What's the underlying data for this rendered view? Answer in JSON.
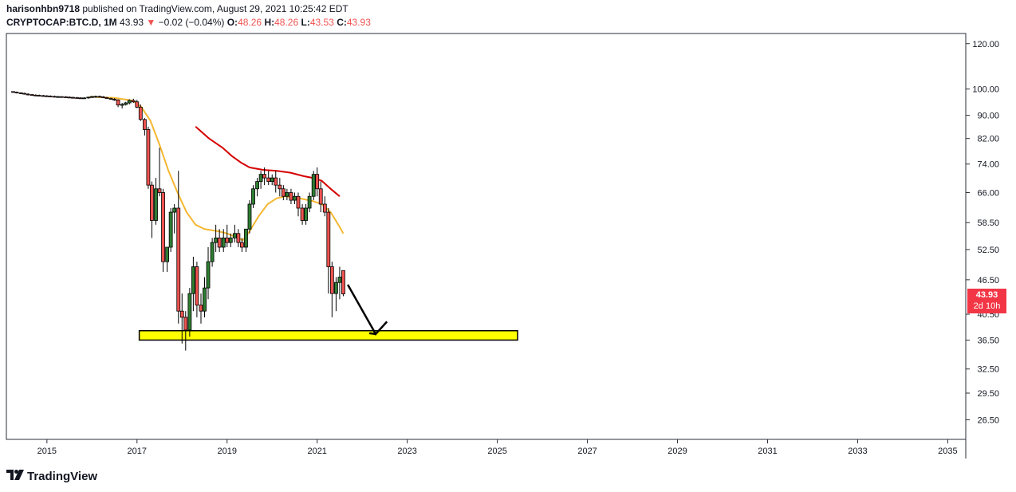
{
  "header": {
    "author": "harisonhbn9718",
    "published_text": "published on TradingView.com, August 29, 2021 10:25:42 EDT"
  },
  "legend": {
    "symbol": "CRYPTOCAP:BTC.D, 1M",
    "last": "43.93",
    "change_arrow": "▼",
    "change": "−0.02 (−0.04%)",
    "o_label": "O:",
    "o_value": "48.26",
    "h_label": "H:",
    "h_value": "48.26",
    "l_label": "L:",
    "l_value": "43.53",
    "c_label": "C:",
    "c_value": "43.93"
  },
  "price_tag": {
    "price": "43.93",
    "countdown": "2d 10h"
  },
  "brand": {
    "logo_icon": "tradingview-logo-icon",
    "name": "TradingView"
  },
  "colors": {
    "up": "#26a69a",
    "down": "#ef5350",
    "candle_body_up": "#2e7d32",
    "ma_fast": "#f5b731",
    "ma_slow": "#d50000",
    "zone": "#ffff00",
    "tag": "#f23645"
  },
  "chart_data": {
    "type": "candlestick",
    "scale": "log",
    "ylim": [
      24.5,
      125
    ],
    "xlim": [
      2014.1,
      2035.4
    ],
    "y_ticks": [
      "120.00",
      "100.00",
      "90.00",
      "82.00",
      "74.00",
      "66.00",
      "58.50",
      "52.50",
      "46.50",
      "40.50",
      "36.50",
      "32.50",
      "29.50",
      "26.50"
    ],
    "x_ticks": [
      "2015",
      "2017",
      "2019",
      "2021",
      "2023",
      "2025",
      "2027",
      "2029",
      "2031",
      "2033",
      "2035"
    ],
    "series": [
      {
        "kind": "ohlc",
        "candles": [
          [
            2014.25,
            99,
            99,
            98.5,
            98.8
          ],
          [
            2014.33,
            98.8,
            99,
            98.2,
            98.5
          ],
          [
            2014.42,
            98.5,
            98.7,
            98,
            98.3
          ],
          [
            2014.5,
            98.3,
            98.5,
            97.8,
            98
          ],
          [
            2014.58,
            98,
            98.3,
            97.5,
            97.8
          ],
          [
            2014.67,
            97.8,
            98,
            97.3,
            97.6
          ],
          [
            2014.75,
            97.6,
            97.9,
            97.2,
            97.5
          ],
          [
            2014.83,
            97.5,
            97.8,
            97.1,
            97.4
          ],
          [
            2014.92,
            97.4,
            97.7,
            97,
            97.3
          ],
          [
            2015.0,
            97.3,
            97.6,
            97,
            97.2
          ],
          [
            2015.08,
            97.2,
            97.5,
            96.9,
            97.1
          ],
          [
            2015.17,
            97.1,
            97.4,
            96.8,
            97
          ],
          [
            2015.25,
            97,
            97.3,
            96.8,
            97
          ],
          [
            2015.33,
            97,
            97.2,
            96.7,
            96.9
          ],
          [
            2015.42,
            96.9,
            97.2,
            96.6,
            96.8
          ],
          [
            2015.5,
            96.8,
            97.1,
            96.5,
            96.7
          ],
          [
            2015.58,
            96.7,
            97,
            96.4,
            96.6
          ],
          [
            2015.67,
            96.6,
            96.9,
            96.3,
            96.5
          ],
          [
            2015.75,
            96.5,
            96.8,
            96.2,
            96.4
          ],
          [
            2015.83,
            96.4,
            96.8,
            96.1,
            96.5
          ],
          [
            2015.92,
            96.5,
            97,
            96.2,
            96.8
          ],
          [
            2016.0,
            96.8,
            97.3,
            96.5,
            97
          ],
          [
            2016.08,
            97,
            97.4,
            96.6,
            97.1
          ],
          [
            2016.17,
            97.1,
            97.4,
            96.6,
            96.9
          ],
          [
            2016.25,
            96.9,
            97.2,
            96.4,
            96.6
          ],
          [
            2016.33,
            96.6,
            96.9,
            96.1,
            96.3
          ],
          [
            2016.42,
            96.3,
            96.6,
            95.8,
            96
          ],
          [
            2016.5,
            96,
            96.4,
            95.4,
            95.7
          ],
          [
            2016.58,
            95.7,
            96,
            93,
            93.8
          ],
          [
            2016.67,
            93.8,
            94.6,
            92.5,
            94
          ],
          [
            2016.75,
            94,
            95,
            93.6,
            94.6
          ],
          [
            2016.83,
            94.6,
            96,
            94,
            95.5
          ],
          [
            2016.92,
            95.5,
            96.2,
            94.6,
            95
          ],
          [
            2017.0,
            95,
            95.8,
            92.6,
            93
          ],
          [
            2017.08,
            93,
            94,
            88,
            88.5
          ],
          [
            2017.17,
            88.5,
            89,
            83,
            85
          ],
          [
            2017.25,
            85,
            86,
            67,
            68
          ],
          [
            2017.33,
            68,
            69,
            55,
            59
          ],
          [
            2017.42,
            59,
            70,
            58,
            67
          ],
          [
            2017.5,
            67,
            79,
            65,
            66
          ],
          [
            2017.58,
            66,
            67,
            48,
            50
          ],
          [
            2017.67,
            50,
            53,
            48,
            53
          ],
          [
            2017.75,
            53,
            62,
            52,
            61
          ],
          [
            2017.83,
            61,
            63,
            56,
            62
          ],
          [
            2017.92,
            62,
            72,
            39,
            41
          ],
          [
            2018.0,
            41,
            44,
            36,
            40
          ],
          [
            2018.08,
            40,
            41,
            35,
            38
          ],
          [
            2018.17,
            38,
            45,
            37,
            44
          ],
          [
            2018.25,
            44,
            51,
            41,
            49
          ],
          [
            2018.33,
            49,
            50,
            40,
            42
          ],
          [
            2018.42,
            42,
            44,
            39,
            41
          ],
          [
            2018.5,
            41,
            47,
            40,
            45
          ],
          [
            2018.58,
            45,
            53,
            43,
            50
          ],
          [
            2018.67,
            50,
            55,
            49,
            54
          ],
          [
            2018.75,
            54,
            58,
            52,
            55
          ],
          [
            2018.83,
            55,
            57,
            52,
            53
          ],
          [
            2018.92,
            53,
            57,
            52,
            55
          ],
          [
            2019.0,
            55,
            58,
            53,
            54
          ],
          [
            2019.08,
            54,
            56,
            53,
            55
          ],
          [
            2019.17,
            55,
            58,
            54,
            56
          ],
          [
            2019.25,
            56,
            57,
            53,
            54
          ],
          [
            2019.33,
            54,
            55,
            52,
            53
          ],
          [
            2019.42,
            53,
            57,
            52,
            57
          ],
          [
            2019.5,
            57,
            64,
            56,
            63
          ],
          [
            2019.58,
            63,
            68,
            62,
            67
          ],
          [
            2019.67,
            67,
            70,
            65,
            69
          ],
          [
            2019.75,
            69,
            72,
            67,
            71
          ],
          [
            2019.83,
            71,
            73,
            68,
            70
          ],
          [
            2019.92,
            70,
            72,
            68,
            69
          ],
          [
            2020.0,
            69,
            71,
            68,
            70
          ],
          [
            2020.08,
            70,
            72,
            66,
            68
          ],
          [
            2020.17,
            68,
            70,
            65,
            67
          ],
          [
            2020.25,
            67,
            68,
            64,
            65
          ],
          [
            2020.33,
            65,
            67,
            64,
            66
          ],
          [
            2020.42,
            66,
            67,
            63,
            64
          ],
          [
            2020.5,
            64,
            66,
            63,
            65
          ],
          [
            2020.58,
            65,
            66,
            60,
            62
          ],
          [
            2020.67,
            62,
            63,
            58,
            59
          ],
          [
            2020.75,
            59,
            63,
            58,
            62
          ],
          [
            2020.83,
            62,
            66,
            61,
            65
          ],
          [
            2020.92,
            65,
            72,
            64,
            71
          ],
          [
            2021.0,
            71,
            73,
            65,
            67
          ],
          [
            2021.08,
            67,
            69,
            61,
            63
          ],
          [
            2021.17,
            63,
            65,
            60,
            61
          ],
          [
            2021.25,
            61,
            62,
            44,
            49
          ],
          [
            2021.33,
            49,
            50,
            40,
            44
          ],
          [
            2021.42,
            44,
            47,
            41,
            46
          ],
          [
            2021.5,
            46,
            49,
            43,
            47
          ],
          [
            2021.58,
            48.26,
            48.26,
            43.53,
            43.93
          ]
        ]
      },
      {
        "name": "",
        "kind": "line",
        "color": "#f5b731",
        "points": [
          [
            2015.95,
            97
          ],
          [
            2016.5,
            96.5
          ],
          [
            2016.9,
            95.5
          ],
          [
            2017.1,
            93
          ],
          [
            2017.3,
            88
          ],
          [
            2017.5,
            80
          ],
          [
            2017.7,
            72
          ],
          [
            2017.9,
            66
          ],
          [
            2018.1,
            61
          ],
          [
            2018.3,
            58
          ],
          [
            2018.5,
            57
          ],
          [
            2018.8,
            56.5
          ],
          [
            2019.0,
            56
          ],
          [
            2019.2,
            55.2
          ],
          [
            2019.35,
            54.5
          ],
          [
            2019.5,
            56.5
          ],
          [
            2019.7,
            60
          ],
          [
            2019.9,
            63
          ],
          [
            2020.1,
            64.5
          ],
          [
            2020.3,
            65
          ],
          [
            2020.6,
            64.5
          ],
          [
            2020.9,
            63.8
          ],
          [
            2021.1,
            63
          ],
          [
            2021.3,
            61
          ],
          [
            2021.5,
            57.5
          ],
          [
            2021.58,
            56
          ]
        ]
      },
      {
        "name": "",
        "kind": "line",
        "color": "#d50000",
        "points": [
          [
            2018.3,
            86
          ],
          [
            2018.6,
            82
          ],
          [
            2018.9,
            79
          ],
          [
            2019.1,
            76.5
          ],
          [
            2019.3,
            74.5
          ],
          [
            2019.5,
            73
          ],
          [
            2019.8,
            72.3
          ],
          [
            2020.1,
            72
          ],
          [
            2020.4,
            71.5
          ],
          [
            2020.7,
            70.5
          ],
          [
            2020.9,
            70
          ],
          [
            2021.1,
            69.2
          ],
          [
            2021.3,
            67
          ],
          [
            2021.5,
            65
          ]
        ]
      },
      {
        "name": "",
        "kind": "zone",
        "color": "#ffff00",
        "x_range": [
          2017.05,
          2025.45
        ],
        "y_range": [
          36.5,
          37.9
        ]
      },
      {
        "name": "",
        "kind": "arrow",
        "color": "#000000",
        "points": [
          [
            2021.68,
            45.6
          ],
          [
            2022.3,
            37.4
          ],
          [
            2022.55,
            39.3
          ]
        ]
      }
    ]
  }
}
